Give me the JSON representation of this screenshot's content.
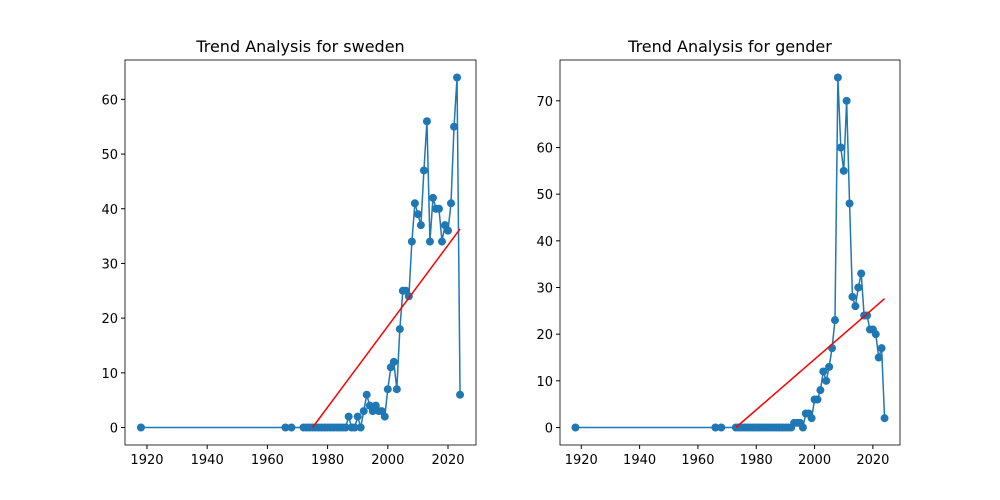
{
  "chart_data": [
    {
      "type": "line",
      "title": "Trend Analysis for sweden",
      "x": [
        1918,
        1966,
        1968,
        1972,
        1973,
        1974,
        1975,
        1976,
        1977,
        1978,
        1979,
        1980,
        1981,
        1982,
        1983,
        1984,
        1985,
        1986,
        1987,
        1988,
        1989,
        1990,
        1991,
        1992,
        1993,
        1994,
        1995,
        1996,
        1997,
        1998,
        1999,
        2000,
        2001,
        2002,
        2003,
        2004,
        2005,
        2006,
        2007,
        2008,
        2009,
        2010,
        2011,
        2012,
        2013,
        2014,
        2015,
        2016,
        2017,
        2018,
        2019,
        2020,
        2021,
        2022,
        2023,
        2024
      ],
      "series": [
        {
          "color": "#1f77b4",
          "values": [
            0,
            0,
            0,
            0,
            0,
            0,
            0,
            0,
            0,
            0,
            0,
            0,
            0,
            0,
            0,
            0,
            0,
            0,
            2,
            0,
            0,
            2,
            0,
            3,
            6,
            4,
            3,
            4,
            3,
            3,
            2,
            7,
            11,
            12,
            7,
            18,
            25,
            25,
            24,
            34,
            41,
            39,
            37,
            47,
            56,
            34,
            42,
            40,
            40,
            34,
            37,
            36,
            41,
            55,
            64,
            6
          ]
        }
      ],
      "trend": {
        "color": "#ff0000",
        "x": [
          1975,
          2024
        ],
        "values": [
          0,
          36.3
        ]
      },
      "xlim": [
        1912.7,
        2029.3
      ],
      "xticks": [
        1920,
        1940,
        1960,
        1980,
        2000,
        2020
      ],
      "ylim": [
        -3.2,
        67.2
      ],
      "yticks": [
        0,
        10,
        20,
        30,
        40,
        50,
        60
      ]
    },
    {
      "type": "line",
      "title": "Trend Analysis for gender",
      "x": [
        1918,
        1966,
        1968,
        1973,
        1974,
        1975,
        1976,
        1977,
        1978,
        1979,
        1980,
        1981,
        1982,
        1983,
        1984,
        1985,
        1986,
        1987,
        1988,
        1989,
        1990,
        1991,
        1992,
        1993,
        1994,
        1995,
        1996,
        1997,
        1998,
        1999,
        2000,
        2001,
        2002,
        2003,
        2004,
        2005,
        2006,
        2007,
        2008,
        2009,
        2010,
        2011,
        2012,
        2013,
        2014,
        2015,
        2016,
        2017,
        2018,
        2019,
        2020,
        2021,
        2022,
        2023,
        2024
      ],
      "series": [
        {
          "color": "#1f77b4",
          "values": [
            0,
            0,
            0,
            0,
            0,
            0,
            0,
            0,
            0,
            0,
            0,
            0,
            0,
            0,
            0,
            0,
            0,
            0,
            0,
            0,
            0,
            0,
            0,
            1,
            1,
            1,
            0,
            3,
            3,
            2,
            6,
            6,
            8,
            12,
            10,
            13,
            17,
            23,
            75,
            60,
            55,
            70,
            48,
            28,
            26,
            30,
            33,
            24,
            24,
            21,
            21,
            20,
            15,
            17,
            2
          ]
        }
      ],
      "trend": {
        "color": "#ff0000",
        "x": [
          1973,
          2024
        ],
        "values": [
          0,
          27.6
        ]
      },
      "xlim": [
        1912.7,
        2029.3
      ],
      "xticks": [
        1920,
        1940,
        1960,
        1980,
        2000,
        2020
      ],
      "ylim": [
        -3.75,
        78.75
      ],
      "yticks": [
        0,
        10,
        20,
        30,
        40,
        50,
        60,
        70
      ]
    }
  ]
}
